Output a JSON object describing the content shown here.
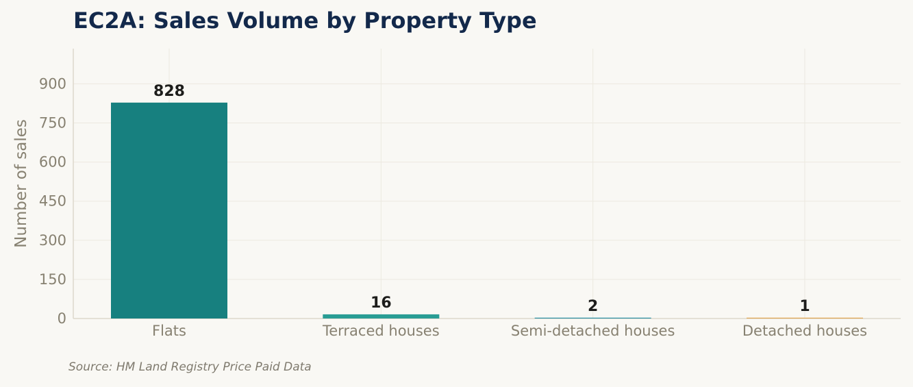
{
  "chart_data": {
    "type": "bar",
    "title": "EC2A: Sales Volume by Property Type",
    "categories": [
      "Flats",
      "Terraced houses",
      "Semi-detached houses",
      "Detached houses"
    ],
    "values": [
      828,
      16,
      2,
      1
    ],
    "value_labels": [
      "828",
      "16",
      "2",
      "1"
    ],
    "colors": [
      "#17807f",
      "#2a9d94",
      "#2a8fa4",
      "#e0a652"
    ],
    "xlabel": "",
    "ylabel": "Number of sales",
    "ylim": [
      0,
      1035
    ],
    "yticks": [
      0,
      150,
      300,
      450,
      600,
      750,
      900
    ],
    "ytick_labels": [
      "0",
      "150",
      "300",
      "450",
      "600",
      "750",
      "900"
    ],
    "grid": true,
    "legend": "none"
  },
  "source": "Source: HM Land Registry Price Paid Data"
}
